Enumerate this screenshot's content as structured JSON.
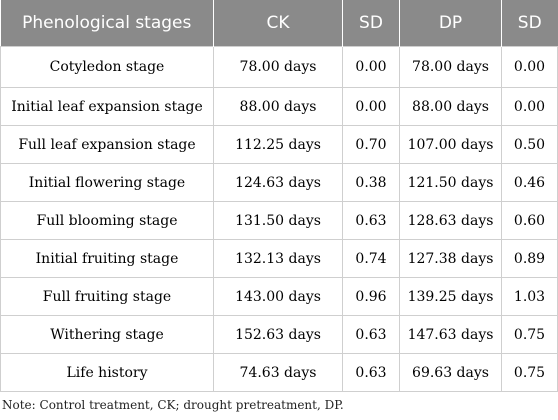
{
  "table": {
    "headers": [
      "Phenological stages",
      "CK",
      "SD",
      "DP",
      "SD"
    ],
    "rows": [
      {
        "stage": "Cotyledon stage",
        "ck": "78.00 days",
        "sd1": "0.00",
        "dp": "78.00 days",
        "sd2": "0.00"
      },
      {
        "stage": "Initial leaf expansion stage",
        "ck": "88.00 days",
        "sd1": "0.00",
        "dp": "88.00 days",
        "sd2": "0.00"
      },
      {
        "stage": "Full leaf expansion stage",
        "ck": "112.25 days",
        "sd1": "0.70",
        "dp": "107.00 days",
        "sd2": "0.50"
      },
      {
        "stage": "Initial flowering stage",
        "ck": "124.63 days",
        "sd1": "0.38",
        "dp": "121.50 days",
        "sd2": "0.46"
      },
      {
        "stage": "Full blooming stage",
        "ck": "131.50 days",
        "sd1": "0.63",
        "dp": "128.63 days",
        "sd2": "0.60"
      },
      {
        "stage": "Initial fruiting stage",
        "ck": "132.13 days",
        "sd1": "0.74",
        "dp": "127.38 days",
        "sd2": "0.89"
      },
      {
        "stage": "Full fruiting stage",
        "ck": "143.00 days",
        "sd1": "0.96",
        "dp": "139.25 days",
        "sd2": "1.03"
      },
      {
        "stage": "Withering stage",
        "ck": "152.63 days",
        "sd1": "0.63",
        "dp": "147.63 days",
        "sd2": "0.75"
      },
      {
        "stage": "Life history",
        "ck": "74.63 days",
        "sd1": "0.63",
        "dp": "69.63 days",
        "sd2": "0.75"
      }
    ]
  },
  "note": "Note: Control treatment, CK; drought pretreatment, DP.",
  "colors": {
    "header_bg": "#8a8a8a",
    "header_text": "#ffffff",
    "grid": "#cfcfcf"
  }
}
